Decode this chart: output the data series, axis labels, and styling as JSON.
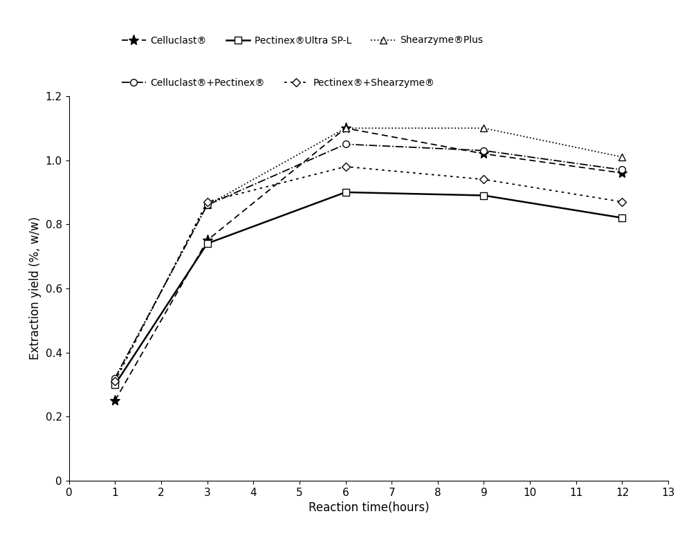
{
  "x": [
    1,
    3,
    6,
    9,
    12
  ],
  "series": [
    {
      "name": "Celluclast®",
      "y": [
        0.25,
        0.75,
        1.1,
        1.02,
        0.96
      ]
    },
    {
      "name": "Pectinex®Ultra SP-L",
      "y": [
        0.3,
        0.74,
        0.9,
        0.89,
        0.82
      ]
    },
    {
      "name": "Shearzyme®Plus",
      "y": [
        0.32,
        0.86,
        1.1,
        1.1,
        1.01
      ]
    },
    {
      "name": "Celluclast®+Pectinex®",
      "y": [
        0.32,
        0.86,
        1.05,
        1.03,
        0.97
      ]
    },
    {
      "name": "Pectinex®+Shearzyme®",
      "y": [
        0.31,
        0.87,
        0.98,
        0.94,
        0.87
      ]
    }
  ],
  "styles": [
    {
      "linestyle": "--",
      "marker": "*",
      "markersize": 11,
      "linewidth": 1.3,
      "dashes": [
        5,
        3
      ],
      "markerfacecolor": "black",
      "markeredgecolor": "black"
    },
    {
      "linestyle": "-",
      "marker": "s",
      "markersize": 7,
      "linewidth": 1.8,
      "dashes": null,
      "markerfacecolor": "white",
      "markeredgecolor": "black"
    },
    {
      "linestyle": ":",
      "marker": "^",
      "markersize": 7,
      "linewidth": 1.3,
      "dashes": null,
      "markerfacecolor": "white",
      "markeredgecolor": "black"
    },
    {
      "linestyle": "-.",
      "marker": "o",
      "markersize": 7,
      "linewidth": 1.3,
      "dashes": null,
      "markerfacecolor": "white",
      "markeredgecolor": "black"
    },
    {
      "linestyle": ":",
      "marker": "D",
      "markersize": 6,
      "linewidth": 1.3,
      "dashes": [
        2,
        3
      ],
      "markerfacecolor": "white",
      "markeredgecolor": "black"
    }
  ],
  "xlabel": "Reaction time(hours)",
  "ylabel": "Extraction yield (%, w/w)",
  "xlim": [
    0,
    13
  ],
  "ylim": [
    0,
    1.2
  ],
  "xticks": [
    0,
    1,
    2,
    3,
    4,
    5,
    6,
    7,
    8,
    9,
    10,
    11,
    12,
    13
  ],
  "yticks": [
    0,
    0.2,
    0.4,
    0.6,
    0.8,
    1.0,
    1.2
  ],
  "background_color": "#ffffff",
  "legend_row1": [
    0,
    1,
    2
  ],
  "legend_row2": [
    3,
    4
  ]
}
